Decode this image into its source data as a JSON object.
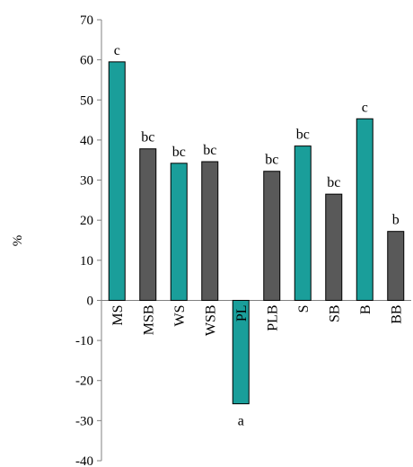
{
  "chart_data": {
    "type": "bar",
    "title": "",
    "xlabel": "",
    "ylabel": "%",
    "ylim": [
      -40,
      70
    ],
    "yticks": [
      -40,
      -30,
      -20,
      -10,
      0,
      10,
      20,
      30,
      40,
      50,
      60,
      70
    ],
    "grid": false,
    "legend": "none",
    "categories": [
      "MS",
      "MSB",
      "WS",
      "WSB",
      "PL",
      "PLB",
      "S",
      "SB",
      "B",
      "BB"
    ],
    "values": [
      59.5,
      37.8,
      34.2,
      34.6,
      -25.8,
      32.2,
      38.5,
      26.5,
      45.3,
      17.2
    ],
    "significance_labels": [
      "c",
      "bc",
      "bc",
      "bc",
      "a",
      "bc",
      "bc",
      "bc",
      "c",
      "b"
    ],
    "colors": [
      "#1a9e9a",
      "#595959",
      "#1a9e9a",
      "#595959",
      "#1a9e9a",
      "#595959",
      "#1a9e9a",
      "#595959",
      "#1a9e9a",
      "#595959"
    ],
    "edge_color": "#000000"
  }
}
